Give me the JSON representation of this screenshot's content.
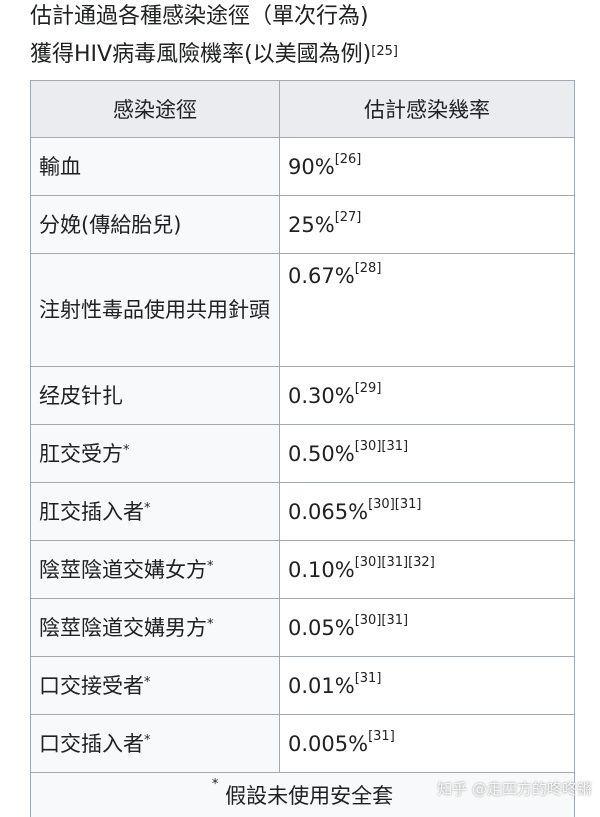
{
  "caption": {
    "line1": "估計通過各種感染途徑（單次行為)",
    "line2": "獲得HIV病毒風險機率(以美國為例)",
    "line2_ref": "[25]"
  },
  "table": {
    "headers": [
      "感染途徑",
      "估計感染幾率"
    ],
    "rows": [
      {
        "route": "輸血",
        "star": "",
        "value": "90%",
        "refs": "[26]"
      },
      {
        "route": "分娩(傳給胎兒)",
        "star": "",
        "value": "25%",
        "refs": "[27]"
      },
      {
        "route": "注射性毒品使用共用針頭",
        "star": "",
        "value": "0.67%",
        "refs": "[28]"
      },
      {
        "route": "经皮针扎",
        "star": "",
        "value": "0.30%",
        "refs": "[29]"
      },
      {
        "route": "肛交受方",
        "star": "*",
        "value": "0.50%",
        "refs": "[30][31]"
      },
      {
        "route": "肛交插入者",
        "star": "*",
        "value": "0.065%",
        "refs": "[30][31]"
      },
      {
        "route": "陰莖陰道交媾女方",
        "star": "*",
        "value": "0.10%",
        "refs": "[30][31][32]"
      },
      {
        "route": "陰莖陰道交媾男方",
        "star": "*",
        "value": "0.05%",
        "refs": "[30][31]"
      },
      {
        "route": "口交接受者",
        "star": "*",
        "value": "0.01%",
        "refs": "[31]"
      },
      {
        "route": "口交插入者",
        "star": "*",
        "value": "0.005%",
        "refs": "[31]"
      }
    ],
    "footnote_mark": "*",
    "footnote": "假設未使用安全套"
  },
  "watermark": "知乎 @走四方的咚咚锵"
}
